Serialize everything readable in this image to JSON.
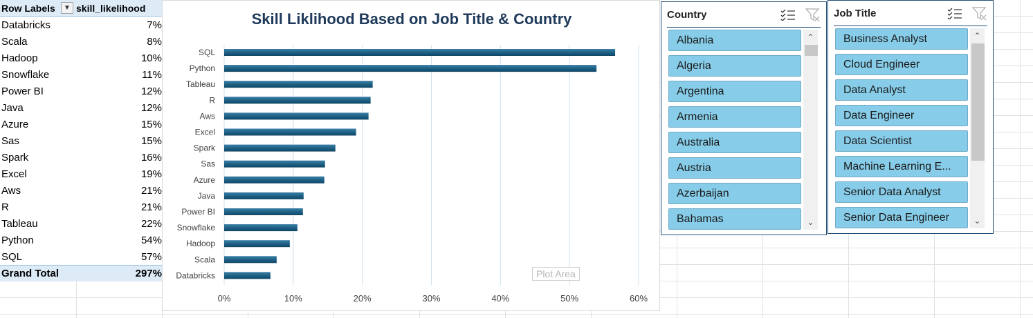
{
  "pivot": {
    "header_row_labels": "Row Labels",
    "header_value": "skill_likelihood",
    "rows": [
      {
        "label": "Databricks",
        "value": "7%"
      },
      {
        "label": "Scala",
        "value": "8%"
      },
      {
        "label": "Hadoop",
        "value": "10%"
      },
      {
        "label": "Snowflake",
        "value": "11%"
      },
      {
        "label": "Power BI",
        "value": "12%"
      },
      {
        "label": "Java",
        "value": "12%"
      },
      {
        "label": "Azure",
        "value": "15%"
      },
      {
        "label": "Sas",
        "value": "15%"
      },
      {
        "label": "Spark",
        "value": "16%"
      },
      {
        "label": "Excel",
        "value": "19%"
      },
      {
        "label": "Aws",
        "value": "21%"
      },
      {
        "label": "R",
        "value": "21%"
      },
      {
        "label": "Tableau",
        "value": "22%"
      },
      {
        "label": "Python",
        "value": "54%"
      },
      {
        "label": "SQL",
        "value": "57%"
      }
    ],
    "total_label": "Grand Total",
    "total_value": "297%"
  },
  "chart_data": {
    "type": "bar",
    "orientation": "horizontal",
    "title": "Skill Liklihood Based on Job Title & Country",
    "categories": [
      "SQL",
      "Python",
      "Tableau",
      "R",
      "Aws",
      "Excel",
      "Spark",
      "Sas",
      "Azure",
      "Java",
      "Power BI",
      "Snowflake",
      "Hadoop",
      "Scala",
      "Databricks"
    ],
    "values": [
      56.6,
      53.9,
      21.5,
      21.2,
      20.9,
      19.1,
      16.1,
      14.6,
      14.5,
      11.5,
      11.4,
      10.6,
      9.5,
      7.6,
      6.7
    ],
    "xlim": [
      0,
      60
    ],
    "x_ticks": [
      "0%",
      "10%",
      "20%",
      "30%",
      "40%",
      "50%",
      "60%"
    ],
    "xlabel": "",
    "ylabel": "",
    "grid": true,
    "bar_color": "#1d5f82",
    "tooltip": "Plot Area"
  },
  "slicers": {
    "country": {
      "title": "Country",
      "items": [
        "Albania",
        "Algeria",
        "Argentina",
        "Armenia",
        "Australia",
        "Austria",
        "Azerbaijan",
        "Bahamas"
      ]
    },
    "job_title": {
      "title": "Job Title",
      "items": [
        "Business Analyst",
        "Cloud Engineer",
        "Data Analyst",
        "Data Engineer",
        "Data Scientist",
        "Machine Learning E...",
        "Senior Data Analyst",
        "Senior Data Engineer"
      ]
    },
    "icons": [
      "multi-select-icon",
      "clear-filter-icon",
      "chevron-up-icon",
      "chevron-down-icon"
    ]
  }
}
